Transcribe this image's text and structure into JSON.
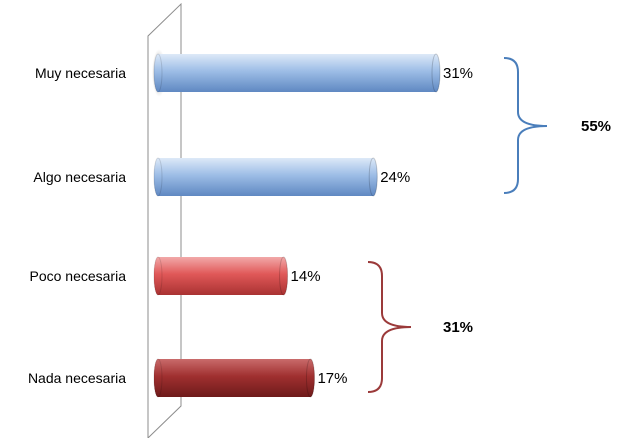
{
  "chart_data": {
    "type": "bar",
    "orientation": "horizontal",
    "categories": [
      "Muy necesaria",
      "Algo necesaria",
      "Poco necesaria",
      "Nada necesaria"
    ],
    "values": [
      31,
      24,
      14,
      17
    ],
    "value_labels": [
      "31%",
      "24%",
      "14%",
      "17%"
    ],
    "unit": "%",
    "bar_colors": [
      "#8fb4e3",
      "#8fb4e3",
      "#e05555",
      "#a83030"
    ],
    "grid": false,
    "legend": "none",
    "groups": [
      {
        "label": "55%",
        "categories": [
          "Muy necesaria",
          "Algo necesaria"
        ],
        "bracket_color": "#4a7ebb"
      },
      {
        "label": "31%",
        "categories": [
          "Poco necesaria",
          "Nada necesaria"
        ],
        "bracket_color": "#9b3a3a"
      }
    ]
  }
}
